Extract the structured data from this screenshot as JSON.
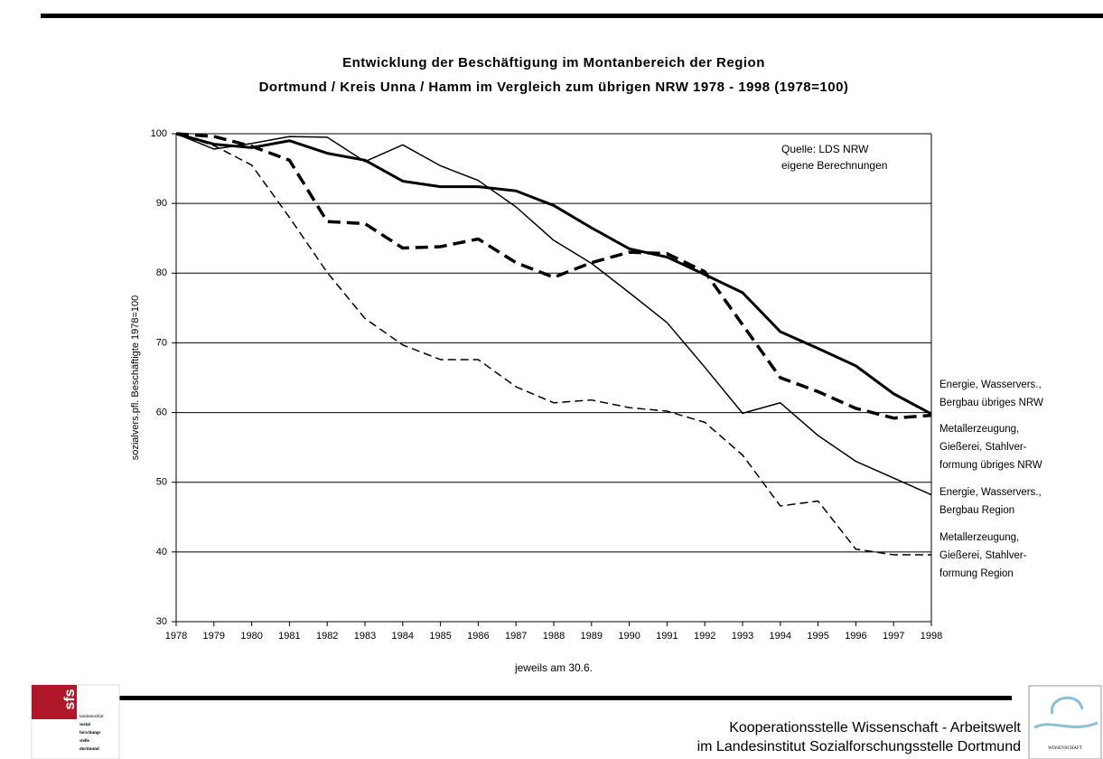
{
  "chart_data": {
    "type": "line",
    "title": [
      "Entwicklung der Beschäftigung im Montanbereich der Region",
      "Dortmund / Kreis Unna / Hamm im Vergleich zum übrigen NRW 1978 - 1998 (1978=100)"
    ],
    "annotation": [
      "Quelle: LDS NRW",
      "eigene Berechnungen"
    ],
    "x_label": "jeweils am 30.6.",
    "y_label": "sozialvers.pfl. Beschäftigte 1978=100",
    "categories": [
      "1978",
      "1979",
      "1980",
      "1981",
      "1982",
      "1983",
      "1984",
      "1985",
      "1986",
      "1987",
      "1988",
      "1989",
      "1990",
      "1991",
      "1992",
      "1993",
      "1994",
      "1995",
      "1996",
      "1997",
      "1998"
    ],
    "ylim": [
      30,
      100
    ],
    "yticks": [
      30,
      40,
      50,
      60,
      70,
      80,
      90,
      100
    ],
    "grid": true,
    "series": [
      {
        "name": "Energie, Wasservers.,\nBergbau übriges NRW",
        "color": "#000",
        "style": "thick-solid",
        "values": [
          100,
          98.5,
          98,
          99,
          97.2,
          96.2,
          93.2,
          92.4,
          92.4,
          91.8,
          89.7,
          86.5,
          83.5,
          82.3,
          79.8,
          77.2,
          71.6,
          69.2,
          66.7,
          62.7,
          59.8
        ]
      },
      {
        "name": "Metallerzeugung,\nGießerei, Stahlver-\nformung übriges NRW",
        "color": "#000",
        "style": "thick-dashed",
        "values": [
          100,
          99.6,
          98.2,
          96.2,
          87.4,
          87.1,
          83.6,
          83.8,
          84.9,
          81.5,
          79.4,
          81.5,
          83.0,
          82.8,
          80.2,
          72.6,
          65.0,
          63.0,
          60.6,
          59.2,
          59.6
        ]
      },
      {
        "name": "Energie, Wasservers.,\nBergbau Region",
        "color": "#000",
        "style": "thin-solid",
        "values": [
          100,
          97.8,
          98.6,
          99.6,
          99.5,
          96.0,
          98.4,
          95.4,
          93.3,
          89.5,
          84.7,
          81.4,
          77.2,
          72.9,
          66.5,
          59.9,
          61.4,
          56.7,
          53.0,
          50.6,
          48.2
        ]
      },
      {
        "name": "Metallerzeugung,\nGießerei, Stahlver-\nformung Region",
        "color": "#000",
        "style": "thin-dashed",
        "values": [
          100,
          98.3,
          95.5,
          88.0,
          80.1,
          73.5,
          69.7,
          67.6,
          67.6,
          63.7,
          61.4,
          61.8,
          60.7,
          60.2,
          58.6,
          53.9,
          46.6,
          47.3,
          40.4,
          39.6,
          39.6
        ]
      }
    ]
  },
  "footer": {
    "lines": [
      "Kooperationsstelle Wissenschaft - Arbeitswelt",
      "im Landesinstitut Sozialforschungsstelle Dortmund"
    ],
    "logo_left": [
      "sfs",
      "landesinstitut",
      "sozial",
      "forschungs",
      "stelle",
      "dortmund"
    ],
    "logo_right": "WISSENSCHAFT"
  }
}
